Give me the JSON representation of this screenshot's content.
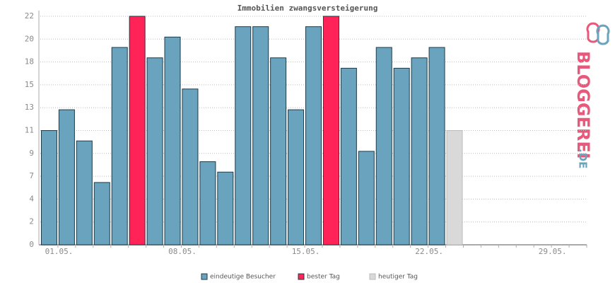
{
  "chart_data": {
    "type": "bar",
    "title": "Immobilien zwangsversteigerung",
    "categories": [
      "01.05.",
      null,
      null,
      null,
      null,
      null,
      null,
      "08.05.",
      null,
      null,
      null,
      null,
      null,
      null,
      "15.05.",
      null,
      null,
      null,
      null,
      null,
      null,
      "22.05.",
      null,
      null,
      null,
      null,
      null,
      null,
      "29.05.",
      null,
      null
    ],
    "series": [
      {
        "name": "eindeutige Besucher",
        "color": "#6aa3bd",
        "values": [
          11,
          13,
          10,
          6,
          19,
          null,
          18,
          20,
          15,
          8,
          7,
          21,
          21,
          18,
          13,
          21,
          null,
          17,
          9,
          19,
          17,
          18,
          19,
          null,
          null,
          null,
          null,
          null,
          null,
          null,
          null
        ]
      },
      {
        "name": "bester Tag",
        "color": "#ff2358",
        "values": [
          null,
          null,
          null,
          null,
          null,
          22,
          null,
          null,
          null,
          null,
          null,
          null,
          null,
          null,
          null,
          null,
          22,
          null,
          null,
          null,
          null,
          null,
          null,
          null,
          null,
          null,
          null,
          null,
          null,
          null,
          null
        ]
      },
      {
        "name": "heutiger Tag",
        "color": "#d9d9d9",
        "values": [
          null,
          null,
          null,
          null,
          null,
          null,
          null,
          null,
          null,
          null,
          null,
          null,
          null,
          null,
          null,
          null,
          null,
          null,
          null,
          null,
          null,
          null,
          null,
          11,
          null,
          null,
          null,
          null,
          null,
          null,
          null
        ]
      }
    ],
    "ylim": [
      0,
      22
    ],
    "yticks": [
      0,
      {
        "value": 2.2,
        "label": "2"
      },
      {
        "value": 4.4,
        "label": "4"
      },
      {
        "value": 6.6,
        "label": "7"
      },
      {
        "value": 8.8,
        "label": "9"
      },
      11,
      {
        "value": 13.2,
        "label": "13"
      },
      {
        "value": 15.4,
        "label": "15"
      },
      {
        "value": 17.6,
        "label": "18"
      },
      {
        "value": 19.8,
        "label": "20"
      },
      22
    ],
    "grid": true,
    "logo": {
      "text": "BLOGGEREI",
      "suffix": ".DE"
    }
  }
}
